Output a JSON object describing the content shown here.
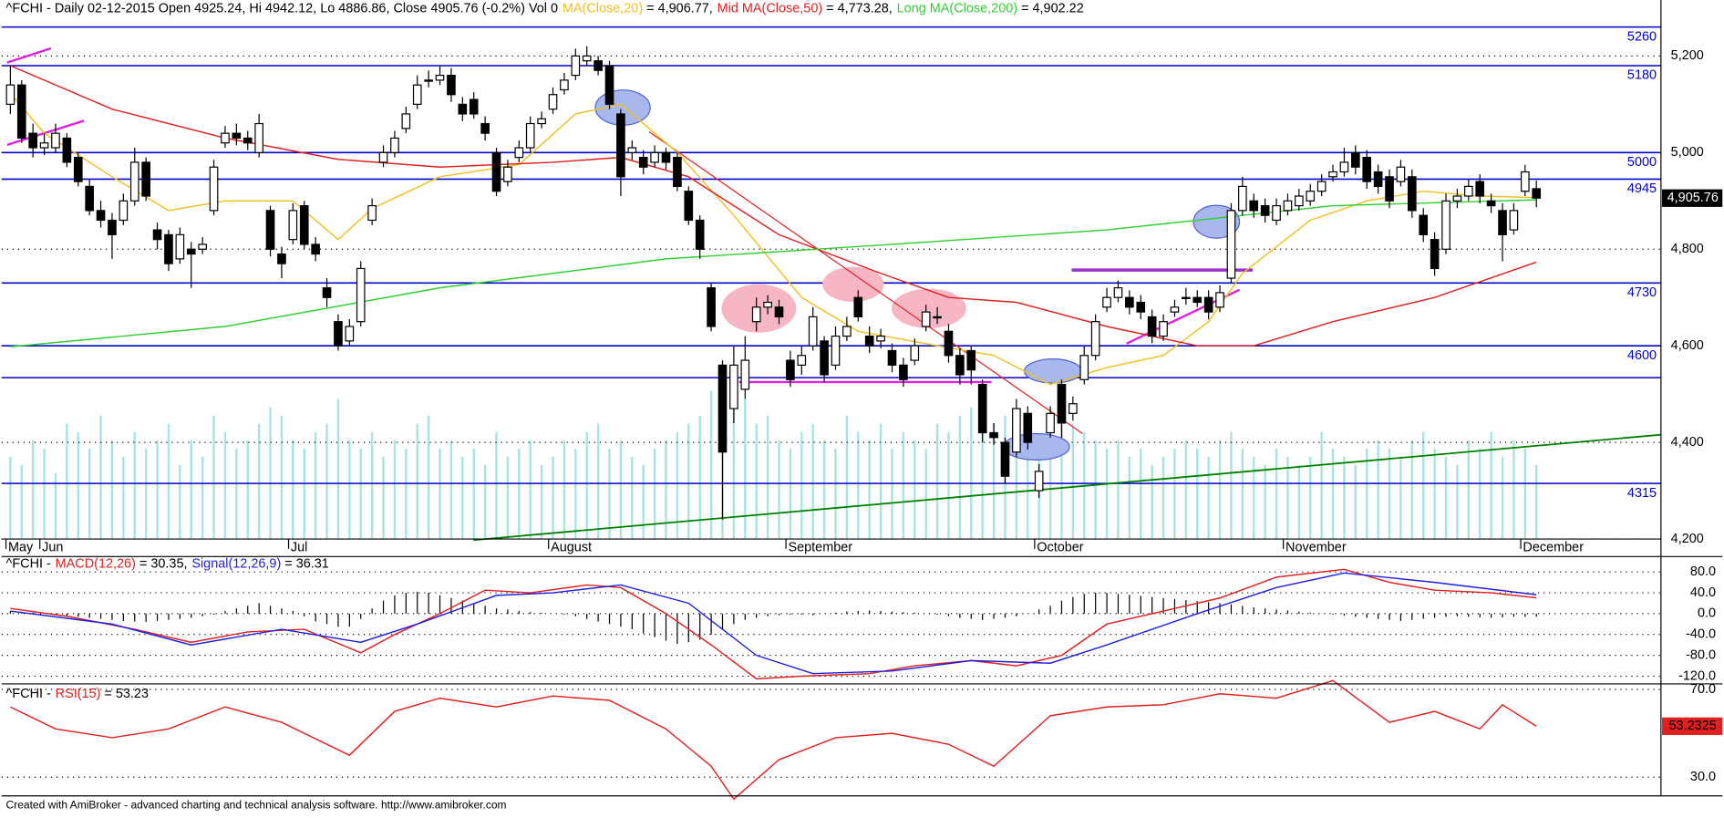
{
  "chart_data": {
    "type": "candlestick",
    "title": "^FCHI - Daily 02-12-2015 Open 4925.24, Hi 4942.12, Lo 4886.86, Close 4905.76 (-0.2%) Vol 0",
    "footer": "Created with AmiBroker - advanced charting and technical analysis software. http://www.amibroker.com",
    "categories": [
      "May",
      null,
      null,
      "Jun",
      null,
      null,
      null,
      null,
      null,
      null,
      null,
      null,
      null,
      null,
      null,
      null,
      null,
      null,
      null,
      null,
      null,
      null,
      null,
      null,
      null,
      "Jul",
      null,
      null,
      null,
      null,
      null,
      null,
      null,
      null,
      null,
      null,
      null,
      null,
      null,
      null,
      null,
      null,
      null,
      null,
      null,
      null,
      null,
      null,
      "August",
      null,
      null,
      null,
      null,
      null,
      null,
      null,
      null,
      null,
      null,
      null,
      null,
      null,
      null,
      null,
      null,
      null,
      null,
      null,
      null,
      "September",
      null,
      null,
      null,
      null,
      null,
      null,
      null,
      null,
      null,
      null,
      null,
      null,
      null,
      null,
      null,
      null,
      null,
      null,
      null,
      null,
      null,
      "October",
      null,
      null,
      null,
      null,
      null,
      null,
      null,
      null,
      null,
      null,
      null,
      null,
      null,
      null,
      null,
      null,
      null,
      null,
      null,
      null,
      null,
      "November",
      null,
      null,
      null,
      null,
      null,
      null,
      null,
      null,
      null,
      null,
      null,
      null,
      null,
      null,
      null,
      null,
      null,
      null,
      null,
      null,
      "December",
      null
    ],
    "open": [
      5100,
      5140,
      5040,
      5010,
      5010,
      5030,
      4990,
      4930,
      4880,
      4860,
      4860,
      4900,
      4980,
      4840,
      4830,
      4780,
      4800,
      4800,
      4880,
      5020,
      5040,
      5030,
      5000,
      4880,
      4790,
      4820,
      4890,
      4810,
      4720,
      4650,
      4610,
      4650,
      4860,
      4980,
      5000,
      5050,
      5100,
      5150,
      5150,
      5160,
      5100,
      5110,
      5060,
      5000,
      4940,
      4990,
      5010,
      5060,
      5090,
      5130,
      5160,
      5190,
      5190,
      5180,
      5080,
      5000,
      4990,
      4980,
      5000,
      4990,
      4920,
      4860,
      4720,
      4560,
      4470,
      4510,
      4650,
      4680,
      4680,
      4570,
      4560,
      4600,
      4610,
      4560,
      4620,
      4700,
      4620,
      4610,
      4590,
      4560,
      4570,
      4640,
      4660,
      4630,
      4580,
      4590,
      4520,
      4420,
      4400,
      4380,
      4460,
      4300,
      4420,
      4520,
      4460,
      4530,
      4580,
      4680,
      4700,
      4700,
      4690,
      4660,
      4620,
      4670,
      4700,
      4700,
      4700,
      4680,
      4740,
      4880,
      4900,
      4890,
      4860,
      4880,
      4890,
      4900,
      4920,
      4950,
      4960,
      5000,
      4990,
      4960,
      4950,
      4940,
      4950,
      4870,
      4820,
      4800,
      4900,
      4910,
      4940,
      4900,
      4880,
      4840,
      4920,
      4925.24
    ],
    "high": [
      5180,
      5150,
      5060,
      5040,
      5060,
      5040,
      5000,
      4945,
      4900,
      4875,
      4915,
      5010,
      4990,
      4855,
      4840,
      4845,
      4815,
      4825,
      4985,
      5055,
      5060,
      5045,
      5080,
      4890,
      4805,
      4895,
      4900,
      4825,
      4740,
      4665,
      4655,
      4775,
      4905,
      5015,
      5045,
      5095,
      5160,
      5170,
      5180,
      5175,
      5115,
      5125,
      5075,
      5010,
      4985,
      5025,
      5075,
      5085,
      5135,
      5165,
      5215,
      5220,
      5200,
      5190,
      5090,
      5025,
      5005,
      5015,
      5010,
      5000,
      4930,
      4870,
      4730,
      4570,
      4600,
      4620,
      4700,
      4705,
      4695,
      4590,
      4600,
      4680,
      4620,
      4640,
      4660,
      4715,
      4640,
      4635,
      4605,
      4575,
      4615,
      4685,
      4680,
      4645,
      4595,
      4600,
      4530,
      4440,
      4410,
      4490,
      4475,
      4355,
      4475,
      4530,
      4495,
      4600,
      4665,
      4720,
      4735,
      4715,
      4705,
      4675,
      4665,
      4695,
      4720,
      4715,
      4715,
      4725,
      4895,
      4950,
      4915,
      4905,
      4905,
      4915,
      4925,
      4935,
      4955,
      4975,
      5010,
      5015,
      5005,
      4975,
      4965,
      4985,
      4965,
      4885,
      4835,
      4915,
      4925,
      4945,
      4955,
      4915,
      4895,
      4895,
      4975,
      4942.12
    ],
    "low": [
      5080,
      5020,
      4990,
      4995,
      5000,
      4970,
      4930,
      4870,
      4845,
      4780,
      4850,
      4890,
      4900,
      4800,
      4755,
      4770,
      4720,
      4790,
      4870,
      5010,
      5015,
      5005,
      4990,
      4785,
      4740,
      4810,
      4800,
      4775,
      4680,
      4590,
      4600,
      4640,
      4850,
      4970,
      4990,
      5040,
      5090,
      5135,
      5140,
      5105,
      5065,
      5070,
      5025,
      4910,
      4930,
      4980,
      5000,
      5050,
      5080,
      5120,
      5150,
      5180,
      5160,
      5090,
      4910,
      4985,
      4955,
      4970,
      4965,
      4920,
      4850,
      4780,
      4630,
      4240,
      4440,
      4490,
      4630,
      4665,
      4645,
      4515,
      4540,
      4590,
      4525,
      4550,
      4610,
      4650,
      4585,
      4595,
      4545,
      4515,
      4560,
      4630,
      4645,
      4565,
      4520,
      4520,
      4400,
      4395,
      4315,
      4370,
      4385,
      4285,
      4410,
      4410,
      4445,
      4520,
      4570,
      4670,
      4690,
      4665,
      4655,
      4605,
      4610,
      4660,
      4685,
      4680,
      4655,
      4670,
      4730,
      4870,
      4865,
      4855,
      4850,
      4870,
      4880,
      4890,
      4910,
      4940,
      4950,
      4955,
      4925,
      4915,
      4885,
      4930,
      4865,
      4815,
      4745,
      4790,
      4885,
      4900,
      4895,
      4875,
      4775,
      4830,
      4910,
      4886.86
    ],
    "close": [
      5140,
      5030,
      5010,
      5020,
      5040,
      4980,
      4940,
      4880,
      4860,
      4830,
      4900,
      4980,
      4910,
      4820,
      4770,
      4830,
      4790,
      4810,
      4970,
      5040,
      5030,
      5020,
      5060,
      4800,
      4770,
      4880,
      4810,
      4790,
      4700,
      4600,
      4640,
      4760,
      4890,
      5000,
      5030,
      5080,
      5140,
      5150,
      5160,
      5120,
      5080,
      5080,
      5040,
      4920,
      4970,
      5010,
      5060,
      5070,
      5120,
      5150,
      5200,
      5200,
      5170,
      5100,
      4950,
      5010,
      4970,
      5000,
      4980,
      4930,
      4860,
      4800,
      4640,
      4380,
      4560,
      4570,
      4680,
      4690,
      4660,
      4530,
      4580,
      4660,
      4540,
      4620,
      4640,
      4660,
      4600,
      4620,
      4560,
      4530,
      4600,
      4670,
      4660,
      4580,
      4540,
      4550,
      4420,
      4410,
      4330,
      4470,
      4400,
      4340,
      4460,
      4440,
      4480,
      4580,
      4650,
      4700,
      4720,
      4680,
      4670,
      4620,
      4650,
      4680,
      4700,
      4690,
      4670,
      4710,
      4880,
      4930,
      4880,
      4870,
      4890,
      4900,
      4910,
      4920,
      4940,
      4960,
      4980,
      4970,
      4940,
      4930,
      4900,
      4970,
      4880,
      4830,
      4760,
      4900,
      4910,
      4930,
      4910,
      4890,
      4830,
      4880,
      4960,
      4905.76
    ],
    "close_label": "4,905.76",
    "volume": [
      50,
      45,
      60,
      55,
      40,
      70,
      65,
      55,
      75,
      60,
      50,
      65,
      55,
      60,
      70,
      45,
      60,
      50,
      75,
      65,
      55,
      60,
      70,
      80,
      75,
      60,
      55,
      65,
      70,
      85,
      60,
      55,
      65,
      50,
      60,
      55,
      70,
      75,
      55,
      60,
      50,
      55,
      45,
      65,
      50,
      55,
      60,
      45,
      50,
      60,
      55,
      65,
      70,
      55,
      60,
      50,
      45,
      55,
      60,
      65,
      70,
      75,
      90,
      100,
      80,
      85,
      70,
      75,
      60,
      55,
      65,
      70,
      60,
      55,
      75,
      65,
      60,
      70,
      55,
      65,
      60,
      55,
      70,
      65,
      75,
      80,
      85,
      70,
      75,
      65,
      70,
      60,
      75,
      80,
      70,
      65,
      60,
      55,
      60,
      50,
      55,
      45,
      50,
      55,
      60,
      55,
      50,
      60,
      65,
      55,
      50,
      45,
      55,
      50,
      45,
      50,
      65,
      55,
      50,
      45,
      55,
      60,
      55,
      50,
      60,
      65,
      55,
      50,
      45,
      60,
      55,
      65,
      50,
      60,
      55,
      45
    ],
    "volume_color": "#a8e4e4",
    "ylim": [
      4200,
      5300
    ],
    "yticks": [
      {
        "value": 5200,
        "label": "5,200"
      },
      {
        "value": 5000,
        "label": "5,000"
      },
      {
        "value": 4800,
        "label": "4,800"
      },
      {
        "value": 4600,
        "label": "4,600"
      },
      {
        "value": 4400,
        "label": "4,400"
      },
      {
        "value": 4200,
        "label": "4,200"
      }
    ],
    "levels": [
      5260,
      5180,
      5000,
      4945,
      4730,
      4600,
      4315
    ],
    "unlabeled_levels": [
      4534
    ],
    "level_color": "#0000cc",
    "series": [
      {
        "name": "MA(Close,20)",
        "value_label": " = 4,906.77,",
        "color": "#f0c020",
        "x": [
          0,
          3,
          9,
          14,
          19,
          25,
          29,
          32,
          38,
          45,
          50,
          54,
          59,
          64,
          70,
          75,
          82,
          87,
          92,
          97,
          102,
          106,
          109,
          115,
          120,
          125,
          130,
          135
        ],
        "values": [
          5123,
          5040,
          4950,
          4880,
          4900,
          4900,
          4820,
          4884,
          4950,
          4975,
          5080,
          5100,
          5000,
          4870,
          4700,
          4630,
          4600,
          4580,
          4520,
          4555,
          4580,
          4650,
          4750,
          4860,
          4900,
          4920,
          4910,
          4906.77
        ]
      },
      {
        "name": "Mid MA(Close,50)",
        "value_label": " = 4,773.28,",
        "color": "#e02020",
        "x": [
          0,
          9,
          19,
          29,
          38,
          48,
          54,
          60,
          68,
          77,
          83,
          89,
          97,
          105,
          110,
          117,
          126,
          135
        ],
        "values": [
          5180,
          5090,
          5030,
          4986,
          4970,
          4980,
          4990,
          4950,
          4830,
          4750,
          4700,
          4690,
          4640,
          4600,
          4600,
          4650,
          4700,
          4773.28
        ]
      },
      {
        "name": "Long MA(Close,200)",
        "value_label": " = 4,902.22",
        "color": "#30d030",
        "x": [
          0,
          19,
          38,
          58,
          78,
          97,
          117,
          135
        ],
        "values": [
          4598,
          4640,
          4720,
          4780,
          4810,
          4840,
          4890,
          4902.22
        ]
      }
    ],
    "macd": {
      "title": "^FCHI -",
      "ylim": [
        -130,
        100
      ],
      "yticks": [
        {
          "value": 80,
          "label": "80.0"
        },
        {
          "value": 40,
          "label": "40.0"
        },
        {
          "value": 0,
          "label": "0.0"
        },
        {
          "value": -40,
          "label": "-40.0"
        },
        {
          "value": -80,
          "label": "-80.0"
        },
        {
          "value": -120,
          "label": "-120.0"
        }
      ],
      "histogram": [
        5,
        3,
        2,
        0,
        -2,
        -4,
        -6,
        -8,
        -10,
        -12,
        -14,
        -15,
        -16,
        -14,
        -12,
        -10,
        -8,
        -5,
        -2,
        5,
        10,
        15,
        20,
        15,
        10,
        5,
        -5,
        -15,
        -20,
        -25,
        -25,
        -10,
        10,
        25,
        35,
        40,
        42,
        40,
        35,
        30,
        25,
        20,
        15,
        10,
        8,
        5,
        3,
        2,
        0,
        -2,
        -5,
        -10,
        -15,
        -20,
        -25,
        -30,
        -38,
        -45,
        -52,
        -58,
        -55,
        -50,
        -40,
        -30,
        -20,
        -12,
        -8,
        -5,
        -3,
        -2,
        -2,
        -3,
        0,
        2,
        4,
        5,
        6,
        5,
        4,
        3,
        2,
        0,
        -2,
        -5,
        -8,
        -10,
        -12,
        -10,
        -8,
        -5,
        0,
        8,
        15,
        25,
        32,
        38,
        40,
        40,
        38,
        36,
        34,
        32,
        30,
        28,
        26,
        24,
        22,
        20,
        18,
        15,
        12,
        10,
        8,
        6,
        4,
        2,
        0,
        -2,
        -4,
        -6,
        -8,
        -10,
        -12,
        -14,
        -12,
        -10,
        -8,
        -6,
        -5,
        -6,
        -7,
        -8,
        -7,
        -6,
        -6,
        -5.96
      ],
      "series": [
        {
          "name": "MACD(12,26)",
          "value_label": " = 30.35,",
          "color": "#e02020",
          "x": [
            0,
            5,
            11,
            16,
            21,
            26,
            31,
            34,
            38,
            42,
            46,
            51,
            54,
            58,
            62,
            66,
            70,
            76,
            80,
            85,
            89,
            93,
            97,
            103,
            107,
            112,
            118,
            122,
            126,
            131,
            135
          ],
          "values": [
            10,
            -5,
            -30,
            -55,
            -35,
            -30,
            -75,
            -40,
            0,
            45,
            40,
            55,
            50,
            0,
            -60,
            -125,
            -120,
            -115,
            -100,
            -90,
            -100,
            -80,
            -20,
            10,
            30,
            70,
            85,
            60,
            45,
            40,
            30.35
          ]
        },
        {
          "name": "Signal(12,26,9)",
          "value_label": " = 36.31",
          "color": "#2020e0",
          "x": [
            0,
            9,
            16,
            24,
            31,
            36,
            43,
            48,
            54,
            60,
            66,
            71,
            78,
            85,
            92,
            97,
            105,
            112,
            118,
            126,
            135
          ],
          "values": [
            5,
            -20,
            -60,
            -30,
            -55,
            -20,
            35,
            40,
            55,
            20,
            -80,
            -115,
            -110,
            -90,
            -95,
            -60,
            0,
            50,
            78,
            60,
            36.31
          ]
        }
      ]
    },
    "rsi": {
      "title": "^FCHI -",
      "ylim": [
        20,
        75
      ],
      "yticks": [
        {
          "value": 70,
          "label": "70.0"
        },
        {
          "value": 30,
          "label": "30.0"
        }
      ],
      "series": [
        {
          "name": "RSI(15)",
          "value_label": " = 53.23",
          "color": "#e02020",
          "x": [
            0,
            4,
            9,
            14,
            19,
            24,
            30,
            34,
            38,
            43,
            48,
            53,
            58,
            62,
            64,
            68,
            73,
            78,
            83,
            87,
            92,
            97,
            102,
            107,
            112,
            117,
            122,
            126,
            130,
            132,
            135
          ],
          "values": [
            62,
            52,
            48,
            52,
            62,
            55,
            40,
            60,
            66,
            62,
            67,
            65,
            52,
            35,
            20,
            38,
            48,
            50,
            45,
            35,
            58,
            62,
            63,
            68,
            66,
            74,
            55,
            60,
            52,
            63,
            53.2325
          ]
        }
      ]
    }
  }
}
